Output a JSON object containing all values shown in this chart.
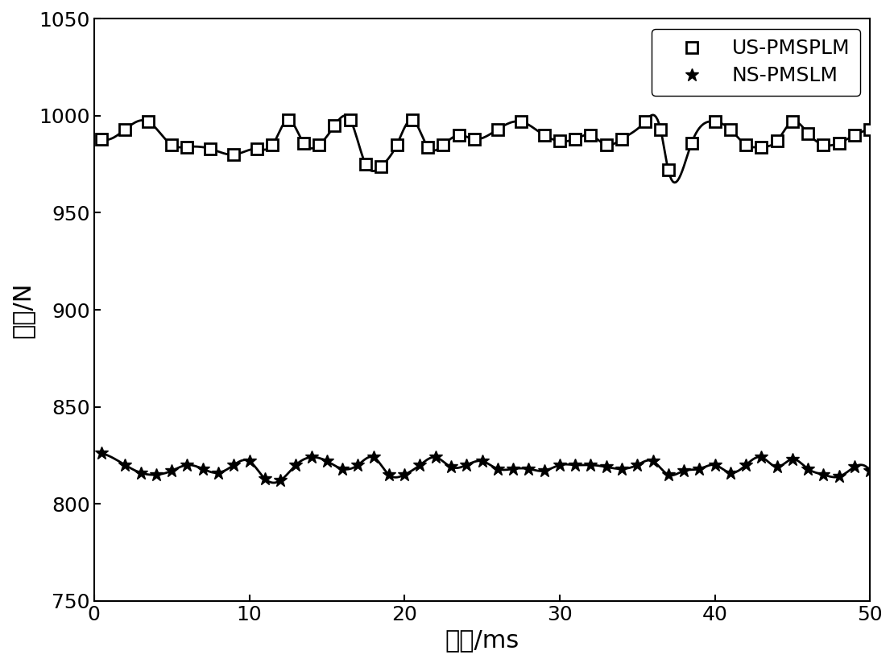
{
  "title": "",
  "xlabel": "时间/ms",
  "ylabel": "推力/N",
  "xlim": [
    0,
    50
  ],
  "ylim": [
    750,
    1050
  ],
  "xticks": [
    0,
    10,
    20,
    30,
    40,
    50
  ],
  "yticks": [
    750,
    800,
    850,
    900,
    950,
    1000,
    1050
  ],
  "line_color": "#000000",
  "background_color": "#ffffff",
  "legend_labels": [
    "US-PMSPLM",
    "NS-PMSLM"
  ],
  "us_x": [
    0.5,
    2,
    3.5,
    5,
    6,
    7.5,
    9,
    10.5,
    11.5,
    12.5,
    13.5,
    14.5,
    15.5,
    16.5,
    17.5,
    18.5,
    19.5,
    20.5,
    21.5,
    22.5,
    23.5,
    24.5,
    26,
    27.5,
    29,
    30,
    31,
    32,
    33,
    34,
    35.5,
    36.5,
    37,
    38.5,
    40,
    41,
    42,
    43,
    44,
    45,
    46,
    47,
    48,
    49,
    50
  ],
  "us_y": [
    988,
    993,
    997,
    985,
    984,
    983,
    980,
    983,
    985,
    998,
    986,
    985,
    995,
    998,
    975,
    974,
    985,
    998,
    984,
    985,
    990,
    988,
    993,
    997,
    990,
    987,
    988,
    990,
    985,
    988,
    997,
    993,
    972,
    986,
    997,
    993,
    985,
    984,
    987,
    997,
    991,
    985,
    986,
    990,
    993
  ],
  "ns_x": [
    0.5,
    2,
    3,
    4,
    5,
    6,
    7,
    8,
    9,
    10,
    11,
    12,
    13,
    14,
    15,
    16,
    17,
    18,
    19,
    20,
    21,
    22,
    23,
    24,
    25,
    26,
    27,
    28,
    29,
    30,
    31,
    32,
    33,
    34,
    35,
    36,
    37,
    38,
    39,
    40,
    41,
    42,
    43,
    44,
    45,
    46,
    47,
    48,
    49,
    50
  ],
  "ns_y": [
    826,
    820,
    816,
    815,
    817,
    820,
    818,
    816,
    820,
    822,
    813,
    812,
    820,
    824,
    822,
    818,
    820,
    824,
    815,
    815,
    820,
    824,
    819,
    820,
    822,
    818,
    818,
    818,
    817,
    820,
    820,
    820,
    819,
    818,
    820,
    822,
    815,
    817,
    818,
    820,
    816,
    820,
    824,
    819,
    823,
    818,
    815,
    814,
    819,
    817
  ]
}
